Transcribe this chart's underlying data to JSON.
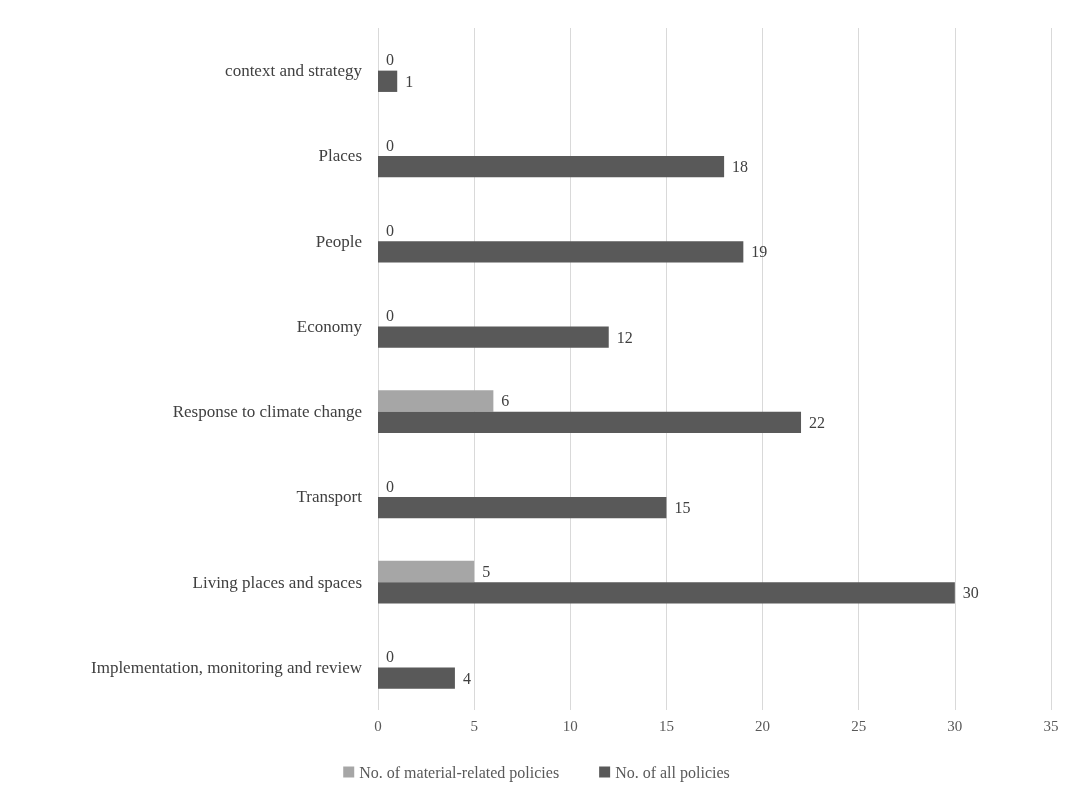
{
  "chart_data": {
    "type": "bar",
    "orientation": "horizontal",
    "categories": [
      "context and strategy",
      "Places",
      "People",
      "Economy",
      "Response to climate change",
      "Transport",
      "Living places and spaces",
      "Implementation, monitoring and review"
    ],
    "series": [
      {
        "name": "No. of material-related policies",
        "color": "#a6a6a6",
        "values": [
          0,
          0,
          0,
          0,
          6,
          0,
          5,
          0
        ]
      },
      {
        "name": "No. of all policies",
        "color": "#595959",
        "values": [
          1,
          18,
          19,
          12,
          22,
          15,
          30,
          4
        ]
      }
    ],
    "xlim": [
      0,
      35
    ],
    "xticks": [
      0,
      5,
      10,
      15,
      20,
      25,
      30,
      35
    ],
    "grid": "x",
    "legend": "bottom",
    "data_labels": true
  }
}
